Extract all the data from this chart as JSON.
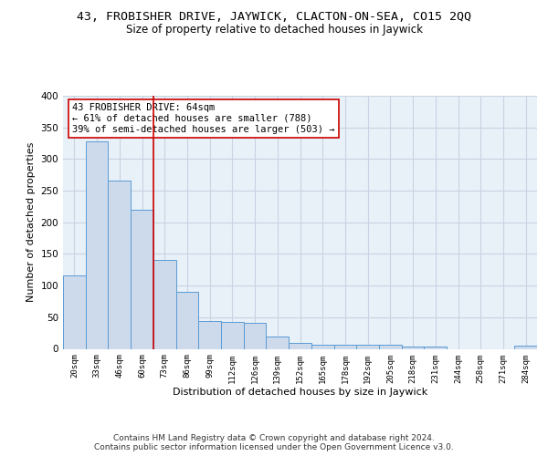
{
  "title": "43, FROBISHER DRIVE, JAYWICK, CLACTON-ON-SEA, CO15 2QQ",
  "subtitle": "Size of property relative to detached houses in Jaywick",
  "xlabel": "Distribution of detached houses by size in Jaywick",
  "ylabel": "Number of detached properties",
  "bar_labels": [
    "20sqm",
    "33sqm",
    "46sqm",
    "60sqm",
    "73sqm",
    "86sqm",
    "99sqm",
    "112sqm",
    "126sqm",
    "139sqm",
    "152sqm",
    "165sqm",
    "178sqm",
    "192sqm",
    "205sqm",
    "218sqm",
    "231sqm",
    "244sqm",
    "258sqm",
    "271sqm",
    "284sqm"
  ],
  "bar_values": [
    116,
    328,
    266,
    220,
    141,
    90,
    44,
    43,
    41,
    20,
    9,
    6,
    6,
    6,
    6,
    4,
    4,
    0,
    0,
    0,
    5
  ],
  "bar_color": "#ccdaeb",
  "bar_edge_color": "#5b9bd5",
  "vline_x": 3.5,
  "vline_color": "#cc0000",
  "annotation_text": "43 FROBISHER DRIVE: 64sqm\n← 61% of detached houses are smaller (788)\n39% of semi-detached houses are larger (503) →",
  "annotation_box_color": "#ffffff",
  "annotation_box_edge": "#cc0000",
  "ylim": [
    0,
    400
  ],
  "yticks": [
    0,
    50,
    100,
    150,
    200,
    250,
    300,
    350,
    400
  ],
  "grid_color": "#c8d4e3",
  "background_color": "#e8f0f8",
  "footer": "Contains HM Land Registry data © Crown copyright and database right 2024.\nContains public sector information licensed under the Open Government Licence v3.0.",
  "title_fontsize": 9.5,
  "subtitle_fontsize": 8.5,
  "xlabel_fontsize": 8,
  "ylabel_fontsize": 8,
  "annotation_fontsize": 7.5,
  "footer_fontsize": 6.5
}
